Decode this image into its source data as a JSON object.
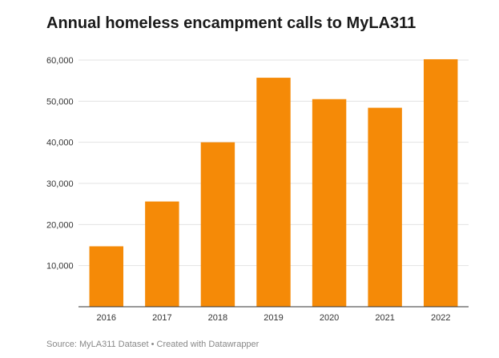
{
  "title": "Annual homeless encampment calls to MyLA311",
  "source": "Source: MyLA311 Dataset • Created with Datawrapper",
  "chart_data": {
    "type": "bar",
    "title": "Annual homeless encampment calls to MyLA311",
    "categories": [
      "2016",
      "2017",
      "2018",
      "2019",
      "2020",
      "2021",
      "2022"
    ],
    "values": [
      14700,
      25600,
      40000,
      55700,
      50500,
      48400,
      60200
    ],
    "xlabel": "",
    "ylabel": "",
    "ylim": [
      0,
      60000
    ],
    "yticks": [
      10000,
      20000,
      30000,
      40000,
      50000,
      60000
    ],
    "ytick_labels": [
      "10,000",
      "20,000",
      "30,000",
      "40,000",
      "50,000",
      "60,000"
    ],
    "grid": true,
    "bar_color": "#f58a07"
  }
}
